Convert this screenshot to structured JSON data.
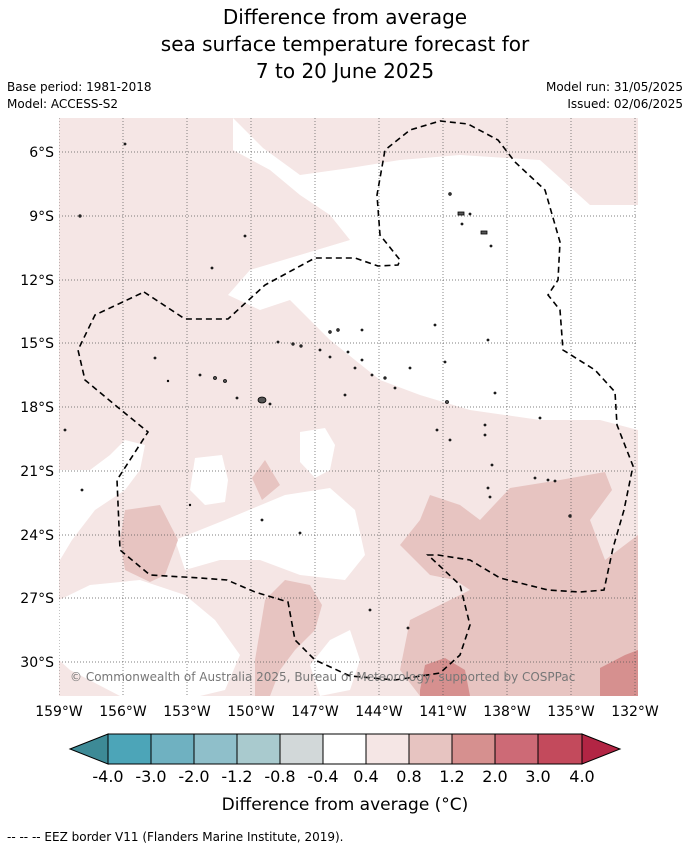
{
  "title": [
    "Difference from average",
    "sea surface temperature forecast for",
    "7 to 20 June 2025"
  ],
  "base_period": "Base period: 1981-2018",
  "model": "Model: ACCESS-S2",
  "model_run": "Model run: 31/05/2025",
  "issued": "Issued: 02/06/2025",
  "copyright": "© Commonwealth of Australia 2025, Bureau of Meteorology, supported by COSPPac",
  "lat_labels": [
    "6°S",
    "9°S",
    "12°S",
    "15°S",
    "18°S",
    "21°S",
    "24°S",
    "27°S",
    "30°S"
  ],
  "lon_labels": [
    "159°W",
    "156°W",
    "153°W",
    "150°W",
    "147°W",
    "144°W",
    "141°W",
    "138°W",
    "135°W",
    "132°W"
  ],
  "colorbar": {
    "title": "Difference from average (°C)",
    "ticks": [
      "-4.0",
      "-3.0",
      "-2.0",
      "-1.2",
      "-0.8",
      "-0.4",
      "0.4",
      "0.8",
      "1.2",
      "2.0",
      "3.0",
      "4.0"
    ],
    "colors": [
      "#3d8a96",
      "#4ca5b8",
      "#6fb1c1",
      "#8fbfca",
      "#a9cace",
      "#d2d8d9",
      "#ffffff",
      "#f5e6e5",
      "#e7c4c1",
      "#d6908f",
      "#cd6a76",
      "#c34a5c",
      "#b22544"
    ]
  },
  "footnote": "--  --  -- EEZ border V11 (Flanders Marine Institute, 2019)."
}
